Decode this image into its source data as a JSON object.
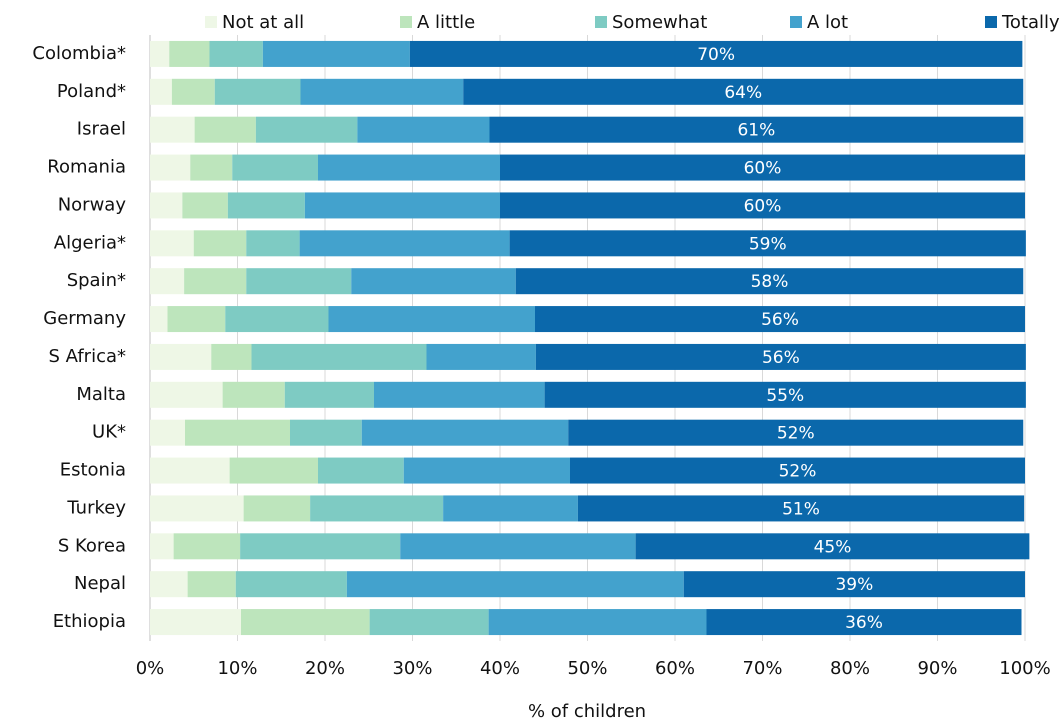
{
  "chart_data": {
    "type": "stacked_barh",
    "xlabel": "% of children",
    "categories": [
      "Colombia*",
      "Poland*",
      "Israel",
      "Romania",
      "Norway",
      "Algeria*",
      "Spain*",
      "Germany",
      "S Africa*",
      "Malta",
      "UK*",
      "Estonia",
      "Turkey",
      "S Korea",
      "Nepal",
      "Ethiopia"
    ],
    "series": [
      {
        "name": "Not at all",
        "color": "#eef7e6",
        "values": [
          2.2,
          2.5,
          5.1,
          4.6,
          3.7,
          5,
          3.9,
          2,
          7,
          8.3,
          4,
          9.1,
          10.7,
          2.7,
          4.3,
          10.4
        ]
      },
      {
        "name": "A little",
        "color": "#bde5bc",
        "values": [
          4.6,
          4.9,
          7,
          4.8,
          5.2,
          6,
          7.1,
          6.6,
          4.6,
          7.1,
          12,
          10.1,
          7.6,
          7.6,
          5.5,
          14.7
        ]
      },
      {
        "name": "Somewhat",
        "color": "#7ecbc3",
        "values": [
          6.1,
          9.8,
          11.6,
          9.8,
          8.8,
          6.1,
          12,
          11.8,
          20,
          10.2,
          8.2,
          9.8,
          15.2,
          18.3,
          12.7,
          13.6
        ]
      },
      {
        "name": "A lot",
        "color": "#43a2cd",
        "values": [
          16.8,
          18.6,
          15.1,
          20.8,
          22.3,
          24,
          18.8,
          23.6,
          12.5,
          19.5,
          23.6,
          19,
          15.4,
          26.9,
          38.5,
          24.9
        ]
      },
      {
        "name": "Totally",
        "color": "#0b68ab",
        "values": [
          70,
          64,
          61,
          60,
          60,
          59,
          58,
          56,
          56,
          55,
          52,
          52,
          51,
          45,
          39,
          36
        ],
        "value_labels": [
          "70%",
          "64%",
          "61%",
          "60%",
          "60%",
          "59%",
          "58%",
          "56%",
          "56%",
          "55%",
          "52%",
          "52%",
          "51%",
          "45%",
          "39%",
          "36%"
        ]
      }
    ],
    "xlim": [
      0,
      100
    ],
    "xticks": [
      {
        "value": 0,
        "label": "0%"
      },
      {
        "value": 10,
        "label": "10%"
      },
      {
        "value": 20,
        "label": "20%"
      },
      {
        "value": 30,
        "label": "30%"
      },
      {
        "value": 40,
        "label": "40%"
      },
      {
        "value": 50,
        "label": "50%"
      },
      {
        "value": 60,
        "label": "60%"
      },
      {
        "value": 70,
        "label": "70%"
      },
      {
        "value": 80,
        "label": "80%"
      },
      {
        "value": 90,
        "label": "90%"
      },
      {
        "value": 100,
        "label": "100%"
      }
    ],
    "grid": true,
    "legend": "top"
  }
}
